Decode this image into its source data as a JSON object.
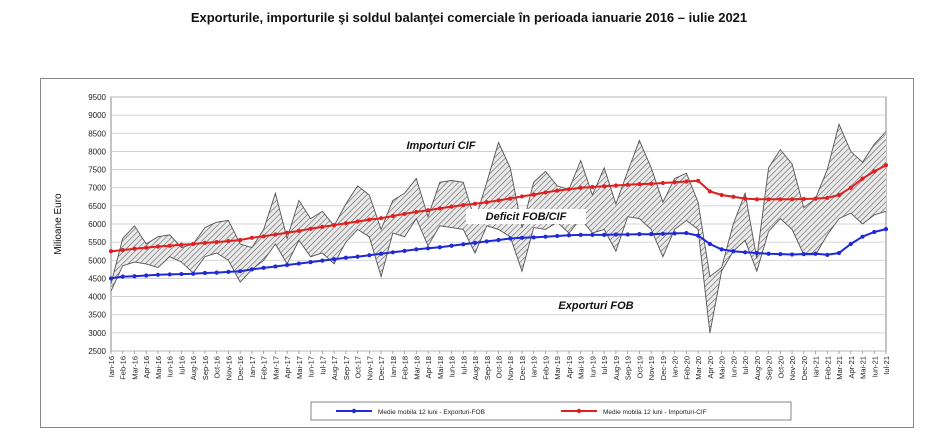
{
  "page_title": "Exporturile, importurile şi soldul balanţei comerciale în perioada ianuarie 2016 – iulie 2021",
  "chart_data": {
    "type": "line",
    "title": "",
    "ylabel": "Milioane Euro",
    "xlabel": "",
    "ylim": [
      2500,
      9500
    ],
    "yticks": [
      2500,
      3000,
      3500,
      4000,
      4500,
      5000,
      5500,
      6000,
      6500,
      7000,
      7500,
      8000,
      8500,
      9000,
      9500
    ],
    "grid": "horizontal",
    "legend_position": "bottom",
    "categories": [
      "Ian-16",
      "Feb-16",
      "Mar-16",
      "Apr-16",
      "Mai-16",
      "Iun-16",
      "Iul-16",
      "Aug-16",
      "Sep-16",
      "Oct-16",
      "Nov-16",
      "Dec-16",
      "Ian-17",
      "Feb-17",
      "Mar-17",
      "Apr-17",
      "Mai-17",
      "Iun-17",
      "Iul-17",
      "Aug-17",
      "Sep-17",
      "Oct-17",
      "Nov-17",
      "Dec-17",
      "Ian-18",
      "Feb-18",
      "Mar-18",
      "Apr-18",
      "Mai-18",
      "Iun-18",
      "Iul-18",
      "Aug-18",
      "Sep-18",
      "Oct-18",
      "Nov-18",
      "Dec-18",
      "Ian-19",
      "Feb-19",
      "Mar-19",
      "Apr-19",
      "Mai-19",
      "Iun-19",
      "Iul-19",
      "Aug-19",
      "Sep-19",
      "Oct-19",
      "Nov-19",
      "Dec-19",
      "Ian-20",
      "Feb-20",
      "Mar-20",
      "Apr-20",
      "Mai-20",
      "Iun-20",
      "Iul-20",
      "Aug-20",
      "Sep-20",
      "Oct-20",
      "Nov-20",
      "Dec-20",
      "Ian-21",
      "Feb-21",
      "Mar-21",
      "Apr-21",
      "Mai-21",
      "Iun-21",
      "Iul-21"
    ],
    "series": [
      {
        "name": "Medie mobila 12 luni - Exporturi-FOB",
        "role": "moving_average",
        "color": "#1f2ad6",
        "values": [
          4500,
          4550,
          4560,
          4580,
          4600,
          4610,
          4620,
          4630,
          4650,
          4660,
          4680,
          4700,
          4750,
          4790,
          4830,
          4870,
          4910,
          4950,
          4990,
          5030,
          5070,
          5100,
          5140,
          5180,
          5220,
          5260,
          5300,
          5330,
          5360,
          5400,
          5440,
          5480,
          5520,
          5560,
          5600,
          5620,
          5630,
          5650,
          5670,
          5690,
          5700,
          5700,
          5700,
          5710,
          5710,
          5720,
          5720,
          5730,
          5740,
          5750,
          5680,
          5450,
          5300,
          5250,
          5220,
          5200,
          5180,
          5170,
          5160,
          5170,
          5180,
          5150,
          5200,
          5450,
          5650,
          5780,
          5860
        ]
      },
      {
        "name": "Medie mobila 12 luni - Importuri-CIF",
        "role": "moving_average",
        "color": "#e02020",
        "values": [
          5250,
          5280,
          5320,
          5350,
          5380,
          5400,
          5430,
          5450,
          5480,
          5500,
          5530,
          5560,
          5620,
          5660,
          5710,
          5760,
          5810,
          5870,
          5920,
          5970,
          6020,
          6070,
          6120,
          6160,
          6220,
          6280,
          6330,
          6380,
          6430,
          6480,
          6520,
          6560,
          6600,
          6650,
          6700,
          6760,
          6810,
          6870,
          6920,
          6960,
          7000,
          7020,
          7040,
          7060,
          7080,
          7100,
          7110,
          7130,
          7150,
          7170,
          7190,
          6900,
          6800,
          6750,
          6700,
          6680,
          6680,
          6680,
          6680,
          6690,
          6700,
          6720,
          6800,
          7000,
          7250,
          7450,
          7620
        ]
      },
      {
        "name": "Exporturi FOB",
        "role": "monthly",
        "color": "#555555",
        "values": [
          4150,
          4850,
          4950,
          4900,
          4800,
          5100,
          4950,
          4650,
          5100,
          5200,
          5000,
          4400,
          4750,
          5000,
          5450,
          4900,
          5550,
          5100,
          5200,
          4900,
          5500,
          5850,
          5650,
          4550,
          5750,
          5650,
          6150,
          5400,
          5950,
          5900,
          5850,
          5200,
          5950,
          5850,
          5650,
          4700,
          5900,
          5850,
          6050,
          5750,
          6150,
          5750,
          5850,
          5250,
          6200,
          6150,
          5850,
          5100,
          5850,
          6100,
          5850,
          3000,
          4700,
          5250,
          5550,
          4700,
          5800,
          6150,
          5850,
          5150,
          5150,
          5700,
          6150,
          6300,
          6000,
          6250,
          6350
        ]
      },
      {
        "name": "Importuri CIF",
        "role": "monthly",
        "color": "#555555",
        "values": [
          4350,
          5600,
          5950,
          5450,
          5650,
          5700,
          5350,
          5450,
          5900,
          6050,
          6100,
          5450,
          5350,
          5850,
          6850,
          5600,
          6650,
          6150,
          6350,
          5950,
          6550,
          7050,
          6800,
          5850,
          6650,
          6850,
          7250,
          6200,
          7150,
          7200,
          7150,
          6100,
          7150,
          8250,
          7550,
          5900,
          7150,
          7450,
          7050,
          6950,
          7750,
          6800,
          7550,
          6550,
          7450,
          8300,
          7550,
          6600,
          7250,
          7400,
          6600,
          4550,
          4800,
          6000,
          6850,
          5050,
          7550,
          8050,
          7650,
          6450,
          6700,
          7500,
          8750,
          8000,
          7700,
          8200,
          8550
        ]
      }
    ],
    "annotations": [
      "Importuri CIF",
      "Deficit FOB/CIF",
      "Exporturi FOB"
    ],
    "legend": [
      "Medie mobila 12 luni - Exporturi-FOB",
      "Medie mobila 12 luni - Importuri-CIF"
    ]
  }
}
